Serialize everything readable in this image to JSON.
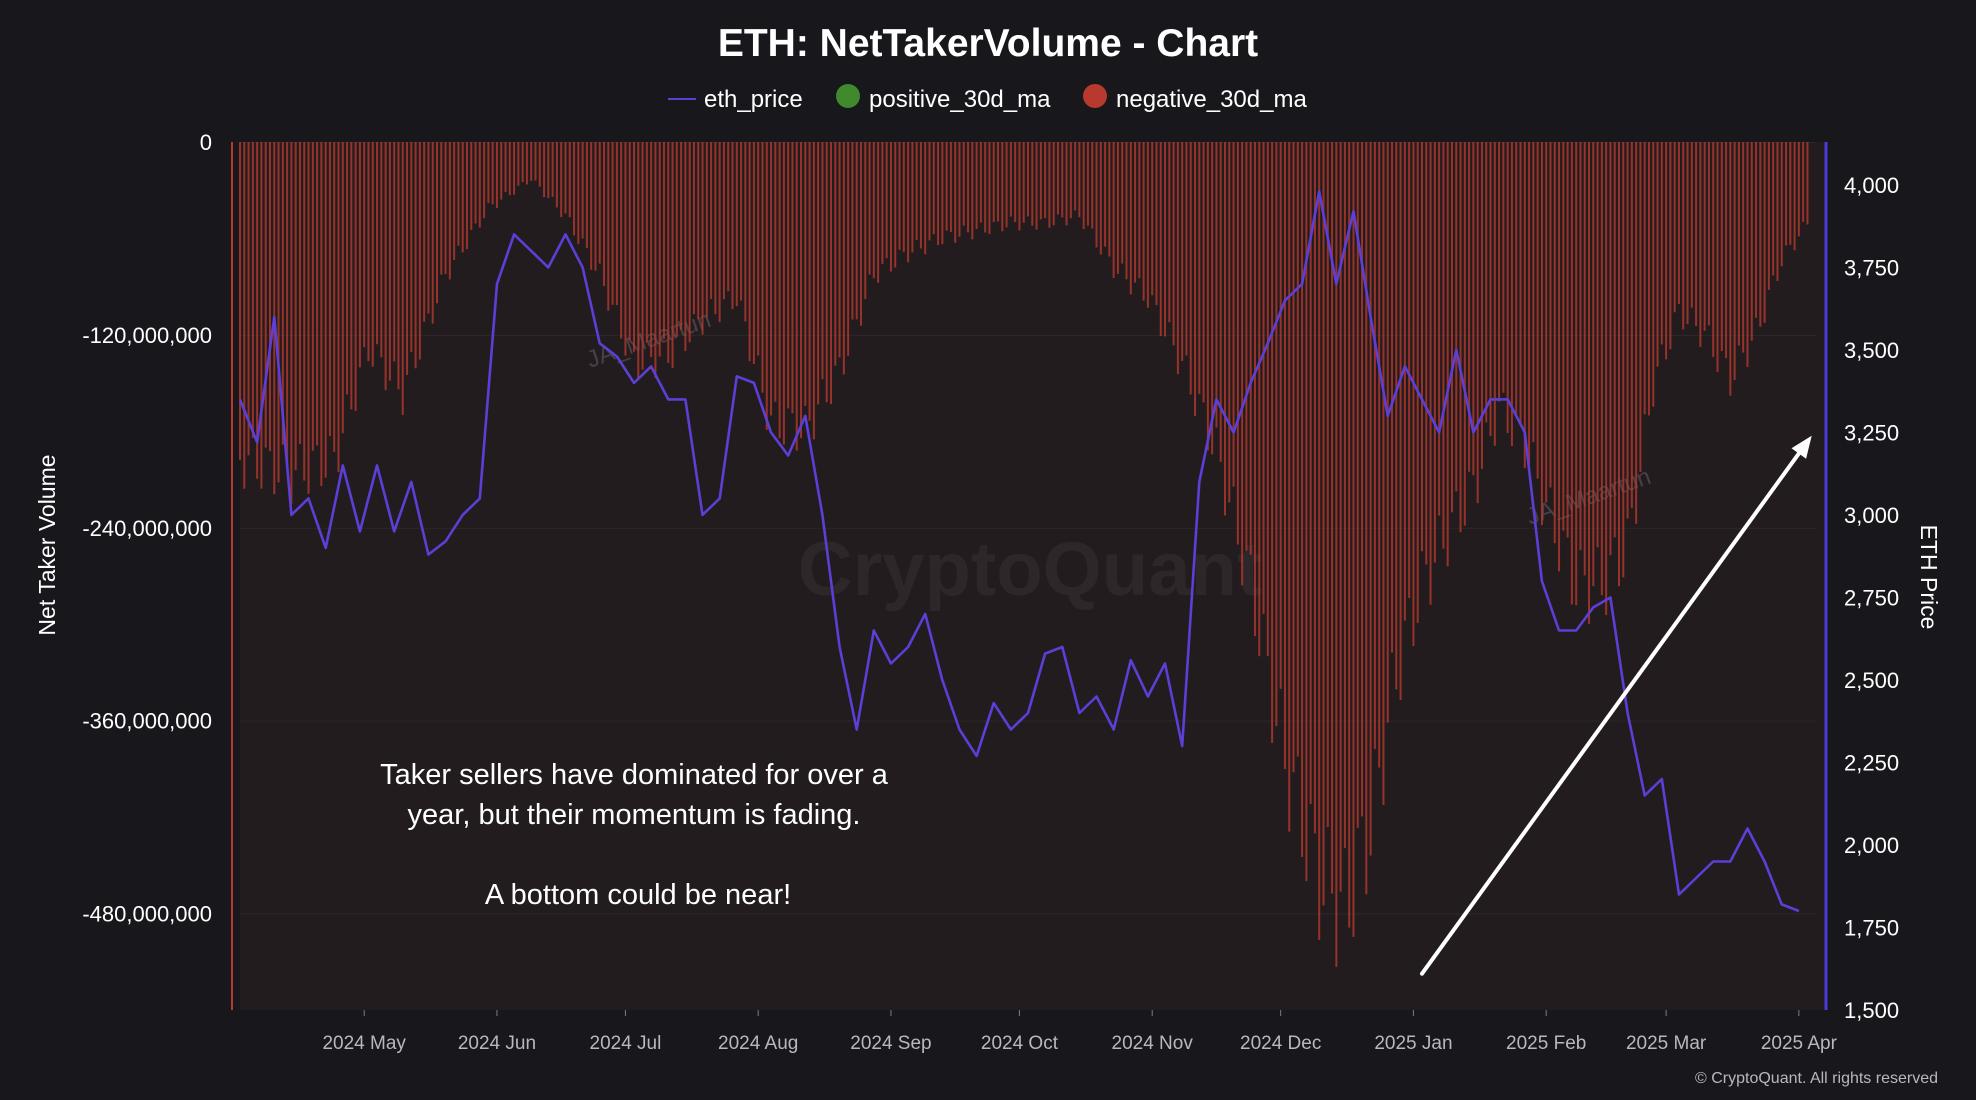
{
  "chart_data": {
    "type": "bar+line",
    "title": "ETH: NetTakerVolume - Chart",
    "legend": [
      {
        "name": "eth_price",
        "color": "#5b3fd6",
        "marker": "line"
      },
      {
        "name": "positive_30d_ma",
        "color": "#3e8a2c",
        "marker": "dot"
      },
      {
        "name": "negative_30d_ma",
        "color": "#b83a2e",
        "marker": "dot"
      }
    ],
    "y_left": {
      "label": "Net Taker Volume",
      "range": [
        -540000000,
        0
      ],
      "ticks": [
        {
          "value": 0,
          "label": "0"
        },
        {
          "value": -120000000,
          "label": "-120,000,000"
        },
        {
          "value": -240000000,
          "label": "-240,000,000"
        },
        {
          "value": -360000000,
          "label": "-360,000,000"
        },
        {
          "value": -480000000,
          "label": "-480,000,000"
        }
      ]
    },
    "y_right": {
      "label": "ETH Price",
      "range": [
        1500,
        4130
      ],
      "ticks": [
        {
          "value": 4000,
          "label": "4,000"
        },
        {
          "value": 3750,
          "label": "3,750"
        },
        {
          "value": 3500,
          "label": "3,500"
        },
        {
          "value": 3250,
          "label": "3,250"
        },
        {
          "value": 3000,
          "label": "3,000"
        },
        {
          "value": 2750,
          "label": "2,750"
        },
        {
          "value": 2500,
          "label": "2,500"
        },
        {
          "value": 2250,
          "label": "2,250"
        },
        {
          "value": 2000,
          "label": "2,000"
        },
        {
          "value": 1750,
          "label": "1,750"
        },
        {
          "value": 1500,
          "label": "1,500"
        }
      ]
    },
    "x_axis": {
      "range": [
        0,
        368
      ],
      "ticks": [
        {
          "day": 29,
          "label": "2024 May"
        },
        {
          "day": 60,
          "label": "2024 Jun"
        },
        {
          "day": 90,
          "label": "2024 Jul"
        },
        {
          "day": 121,
          "label": "2024 Aug"
        },
        {
          "day": 152,
          "label": "2024 Sep"
        },
        {
          "day": 182,
          "label": "2024 Oct"
        },
        {
          "day": 213,
          "label": "2024 Nov"
        },
        {
          "day": 243,
          "label": "2024 Dec"
        },
        {
          "day": 274,
          "label": "2025 Jan"
        },
        {
          "day": 305,
          "label": "2025 Feb"
        },
        {
          "day": 333,
          "label": "2025 Mar"
        },
        {
          "day": 364,
          "label": "2025 Apr"
        }
      ]
    },
    "negative_30d_ma": [
      [
        0,
        -215000000
      ],
      [
        12,
        -225000000
      ],
      [
        22,
        -215000000
      ],
      [
        30,
        -140000000
      ],
      [
        38,
        -170000000
      ],
      [
        48,
        -90000000
      ],
      [
        58,
        -45000000
      ],
      [
        68,
        -25000000
      ],
      [
        76,
        -50000000
      ],
      [
        84,
        -90000000
      ],
      [
        92,
        -150000000
      ],
      [
        100,
        -145000000
      ],
      [
        108,
        -120000000
      ],
      [
        116,
        -105000000
      ],
      [
        124,
        -190000000
      ],
      [
        132,
        -195000000
      ],
      [
        140,
        -155000000
      ],
      [
        148,
        -90000000
      ],
      [
        156,
        -75000000
      ],
      [
        164,
        -65000000
      ],
      [
        172,
        -60000000
      ],
      [
        180,
        -55000000
      ],
      [
        188,
        -55000000
      ],
      [
        196,
        -50000000
      ],
      [
        204,
        -85000000
      ],
      [
        212,
        -105000000
      ],
      [
        220,
        -150000000
      ],
      [
        228,
        -210000000
      ],
      [
        236,
        -300000000
      ],
      [
        244,
        -420000000
      ],
      [
        252,
        -500000000
      ],
      [
        258,
        -520000000
      ],
      [
        264,
        -465000000
      ],
      [
        270,
        -360000000
      ],
      [
        276,
        -300000000
      ],
      [
        282,
        -265000000
      ],
      [
        288,
        -235000000
      ],
      [
        294,
        -180000000
      ],
      [
        300,
        -205000000
      ],
      [
        306,
        -255000000
      ],
      [
        312,
        -300000000
      ],
      [
        318,
        -300000000
      ],
      [
        324,
        -275000000
      ],
      [
        330,
        -165000000
      ],
      [
        336,
        -115000000
      ],
      [
        342,
        -130000000
      ],
      [
        348,
        -160000000
      ],
      [
        354,
        -130000000
      ],
      [
        360,
        -80000000
      ],
      [
        366,
        -55000000
      ]
    ],
    "eth_price": [
      [
        0,
        3350
      ],
      [
        4,
        3220
      ],
      [
        8,
        3600
      ],
      [
        12,
        3000
      ],
      [
        16,
        3050
      ],
      [
        20,
        2900
      ],
      [
        24,
        3150
      ],
      [
        28,
        2950
      ],
      [
        32,
        3150
      ],
      [
        36,
        2950
      ],
      [
        40,
        3100
      ],
      [
        44,
        2880
      ],
      [
        48,
        2920
      ],
      [
        52,
        3000
      ],
      [
        56,
        3050
      ],
      [
        60,
        3700
      ],
      [
        64,
        3850
      ],
      [
        68,
        3800
      ],
      [
        72,
        3750
      ],
      [
        76,
        3850
      ],
      [
        80,
        3750
      ],
      [
        84,
        3520
      ],
      [
        88,
        3480
      ],
      [
        92,
        3400
      ],
      [
        96,
        3450
      ],
      [
        100,
        3350
      ],
      [
        104,
        3350
      ],
      [
        108,
        3000
      ],
      [
        112,
        3050
      ],
      [
        116,
        3420
      ],
      [
        120,
        3400
      ],
      [
        124,
        3250
      ],
      [
        128,
        3180
      ],
      [
        132,
        3300
      ],
      [
        136,
        3000
      ],
      [
        140,
        2600
      ],
      [
        144,
        2350
      ],
      [
        148,
        2650
      ],
      [
        152,
        2550
      ],
      [
        156,
        2600
      ],
      [
        160,
        2700
      ],
      [
        164,
        2500
      ],
      [
        168,
        2350
      ],
      [
        172,
        2270
      ],
      [
        176,
        2430
      ],
      [
        180,
        2350
      ],
      [
        184,
        2400
      ],
      [
        188,
        2580
      ],
      [
        192,
        2600
      ],
      [
        196,
        2400
      ],
      [
        200,
        2450
      ],
      [
        204,
        2350
      ],
      [
        208,
        2560
      ],
      [
        212,
        2450
      ],
      [
        216,
        2550
      ],
      [
        220,
        2300
      ],
      [
        224,
        3100
      ],
      [
        228,
        3350
      ],
      [
        232,
        3250
      ],
      [
        236,
        3400
      ],
      [
        240,
        3520
      ],
      [
        244,
        3650
      ],
      [
        248,
        3700
      ],
      [
        252,
        3980
      ],
      [
        256,
        3700
      ],
      [
        260,
        3920
      ],
      [
        264,
        3600
      ],
      [
        268,
        3300
      ],
      [
        272,
        3450
      ],
      [
        276,
        3350
      ],
      [
        280,
        3250
      ],
      [
        284,
        3500
      ],
      [
        288,
        3250
      ],
      [
        292,
        3350
      ],
      [
        296,
        3350
      ],
      [
        300,
        3250
      ],
      [
        304,
        2800
      ],
      [
        308,
        2650
      ],
      [
        312,
        2650
      ],
      [
        316,
        2720
      ],
      [
        320,
        2750
      ],
      [
        324,
        2400
      ],
      [
        328,
        2150
      ],
      [
        332,
        2200
      ],
      [
        336,
        1850
      ],
      [
        340,
        1900
      ],
      [
        344,
        1950
      ],
      [
        348,
        1950
      ],
      [
        352,
        2050
      ],
      [
        356,
        1950
      ],
      [
        360,
        1820
      ],
      [
        364,
        1800
      ]
    ],
    "annotation": {
      "lines": [
        "Taker sellers have dominated for over a",
        "year, but their momentum is fading.",
        "",
        "A bottom could be near!"
      ]
    },
    "arrow": {
      "from": {
        "day": 276,
        "price": 1610
      },
      "to": {
        "day": 367,
        "price": 3240
      }
    },
    "watermarks": [
      "JA_Maartun",
      "JA_Maartun",
      "CryptoQuant"
    ],
    "copyright": "© CryptoQuant. All rights reserved"
  }
}
